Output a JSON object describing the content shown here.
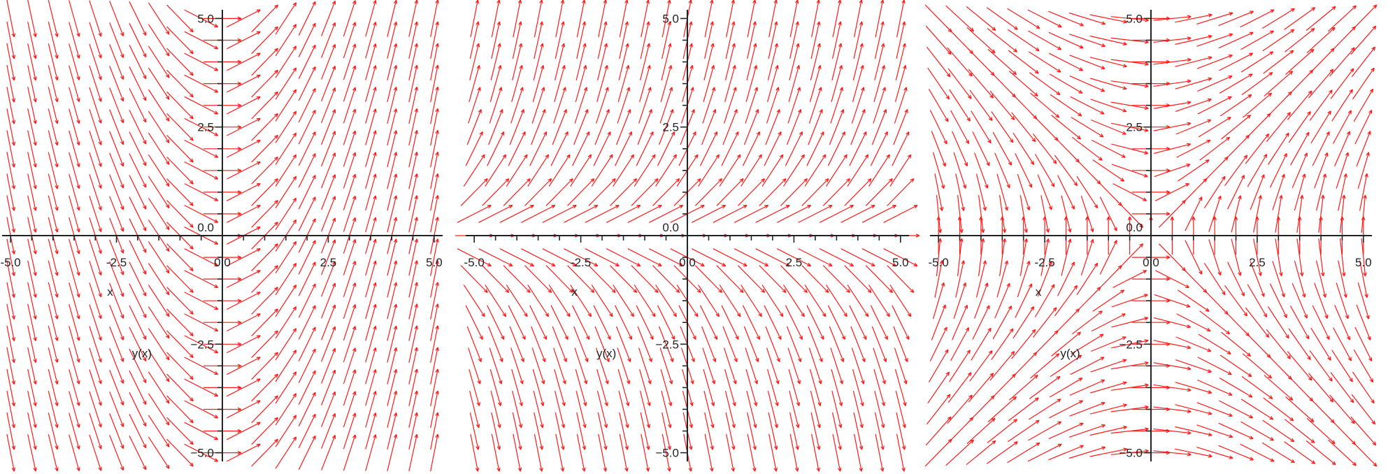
{
  "chart_data": [
    {
      "type": "field",
      "title": "",
      "xlabel": "x",
      "ylabel": "y(x)",
      "xlim": [
        -5.2,
        5.2
      ],
      "ylim": [
        -5.2,
        5.2
      ],
      "xticks": [
        -5.0,
        -2.5,
        0.0,
        2.5,
        5.0
      ],
      "yticks": [
        -5.0,
        -2.5,
        0.0,
        2.5,
        5.0
      ],
      "xtick_labels": [
        "-5.0",
        "-2.5",
        "0.0",
        "2.5",
        "5.0"
      ],
      "ytick_labels": [
        "−5.0",
        "−2.5",
        "0.0",
        "2.5",
        "5.0"
      ],
      "grid": false,
      "arrow_color": "#ff1a1a",
      "slope_function": "x",
      "samples": 21
    },
    {
      "type": "field",
      "title": "",
      "xlabel": "x",
      "ylabel": "y(x)",
      "xlim": [
        -5.2,
        5.2
      ],
      "ylim": [
        -5.2,
        5.2
      ],
      "xticks": [
        -5.0,
        -2.5,
        0.0,
        2.5,
        5.0
      ],
      "yticks": [
        -5.0,
        -2.5,
        0.0,
        2.5,
        5.0
      ],
      "xtick_labels": [
        "-5.0",
        "-2.5",
        "0.0",
        "2.5",
        "5.0"
      ],
      "ytick_labels": [
        "−5.0",
        "−2.5",
        "0.0",
        "2.5",
        "5.0"
      ],
      "grid": false,
      "arrow_color": "#ff1a1a",
      "slope_function": "y",
      "samples": 21
    },
    {
      "type": "field",
      "title": "",
      "xlabel": "x",
      "ylabel": "y(x)",
      "xlim": [
        -5.2,
        5.2
      ],
      "ylim": [
        -5.2,
        5.2
      ],
      "xticks": [
        -5.0,
        -2.5,
        0.0,
        2.5,
        5.0
      ],
      "yticks": [
        -5.0,
        -2.5,
        0.0,
        2.5,
        5.0
      ],
      "xtick_labels": [
        "-5.0",
        "-2.5",
        "0.0",
        "2.5",
        "5.0"
      ],
      "ytick_labels": [
        "−5.0",
        "−2.5",
        "0.0",
        "2.5",
        "5.0"
      ],
      "grid": false,
      "arrow_color": "#ff1a1a",
      "slope_function": "x/y",
      "samples": 21
    }
  ]
}
